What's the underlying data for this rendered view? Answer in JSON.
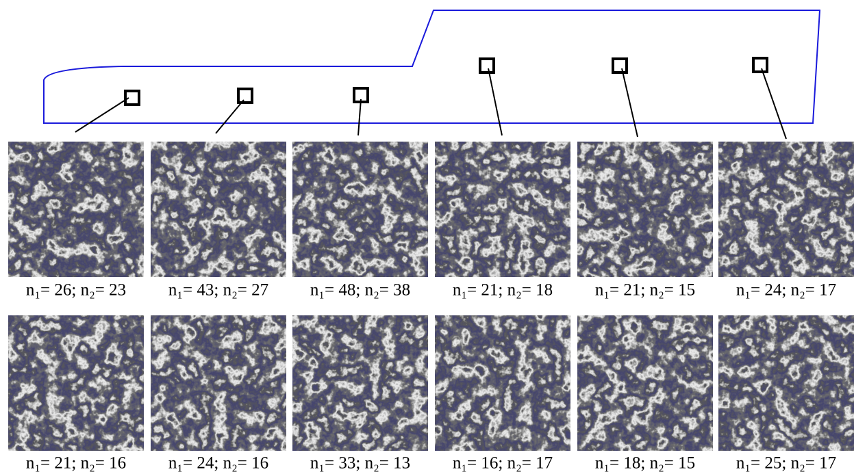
{
  "panels": {
    "row1": [
      "n₁= 26; n₂= 23",
      "n₁= 43; n₂= 27",
      "n₁= 48; n₂= 38",
      "n₁= 21; n₂= 18",
      "n₁= 21; n₂= 15",
      "n₁= 24; n₂= 17"
    ],
    "row2": [
      "n₁= 21; n₂= 16",
      "n₁= 24; n₂= 16",
      "n₁= 33; n₂= 13",
      "n₁= 16; n₂= 17",
      "n₁= 18; n₂= 15",
      "n₁= 25; n₂= 17"
    ]
  }
}
